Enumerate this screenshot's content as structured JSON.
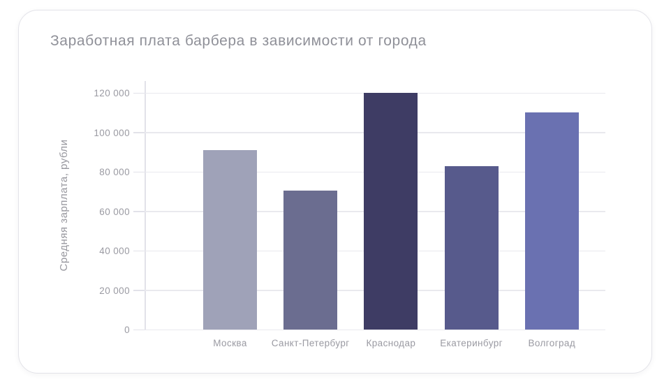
{
  "card": {
    "title": "Заработная плата барбера в зависимости от города"
  },
  "chart_data": {
    "type": "bar",
    "title": "Заработная плата барбера в зависимости от города",
    "xlabel": "",
    "ylabel": "Средняя зарплата, рубли",
    "categories": [
      "Москва",
      "Санкт-Петербург",
      "Краснодар",
      "Екатеринбург",
      "Волгоград"
    ],
    "values": [
      91000,
      70500,
      120000,
      83000,
      110000
    ],
    "bar_colors": [
      "#9fa2b8",
      "#6b6d90",
      "#3e3c64",
      "#575a8c",
      "#6a71b1"
    ],
    "ylim": [
      0,
      120000
    ],
    "yticks": [
      0,
      20000,
      40000,
      60000,
      80000,
      100000,
      120000
    ],
    "ytick_labels": [
      "0",
      "20 000",
      "40 000",
      "60 000",
      "80 000",
      "100 000",
      "120 000"
    ],
    "grid": "horizontal-on",
    "legend": "none"
  },
  "style": {
    "title_color": "#8f9098",
    "tick_label_color": "#9a9aa2",
    "grid_color": "#e9e9ee",
    "axis_color": "#e2e2e9",
    "card_background": "#ffffff",
    "card_border": "#e3e3e9"
  }
}
